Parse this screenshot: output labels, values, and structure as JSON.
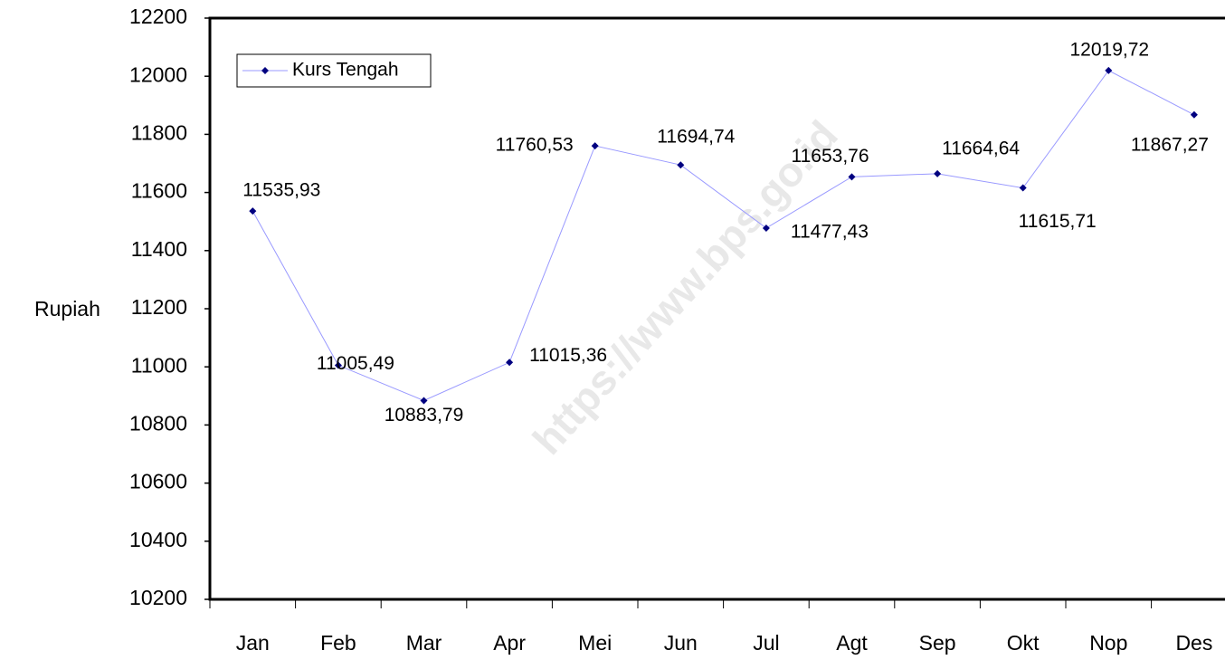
{
  "chart_data": {
    "type": "line",
    "y_label": "Rupiah",
    "watermark": "https://www.bps.go.id",
    "categories": [
      "Jan",
      "Feb",
      "Mar",
      "Apr",
      "Mei",
      "Jun",
      "Jul",
      "Agt",
      "Sep",
      "Okt",
      "Nop",
      "Des"
    ],
    "series": [
      {
        "name": "Kurs Tengah",
        "color": "#9999ff",
        "marker_color": "#000080",
        "values": [
          11535.93,
          11005.49,
          10883.79,
          11015.36,
          11760.53,
          11694.74,
          11477.43,
          11653.76,
          11664.64,
          11615.71,
          12019.72,
          11867.27
        ],
        "value_labels": [
          "11535,93",
          "11005,49",
          "10883,79",
          "11015,36",
          "11760,53",
          "11694,74",
          "11477,43",
          "11653,76",
          "11664,64",
          "11615,71",
          "12019,72",
          "11867,27"
        ]
      }
    ],
    "ylim": [
      10200,
      12200
    ],
    "yticks": [
      10200,
      10400,
      10600,
      10800,
      11000,
      11200,
      11400,
      11600,
      11800,
      12000,
      12200
    ],
    "legend": "top-left"
  }
}
